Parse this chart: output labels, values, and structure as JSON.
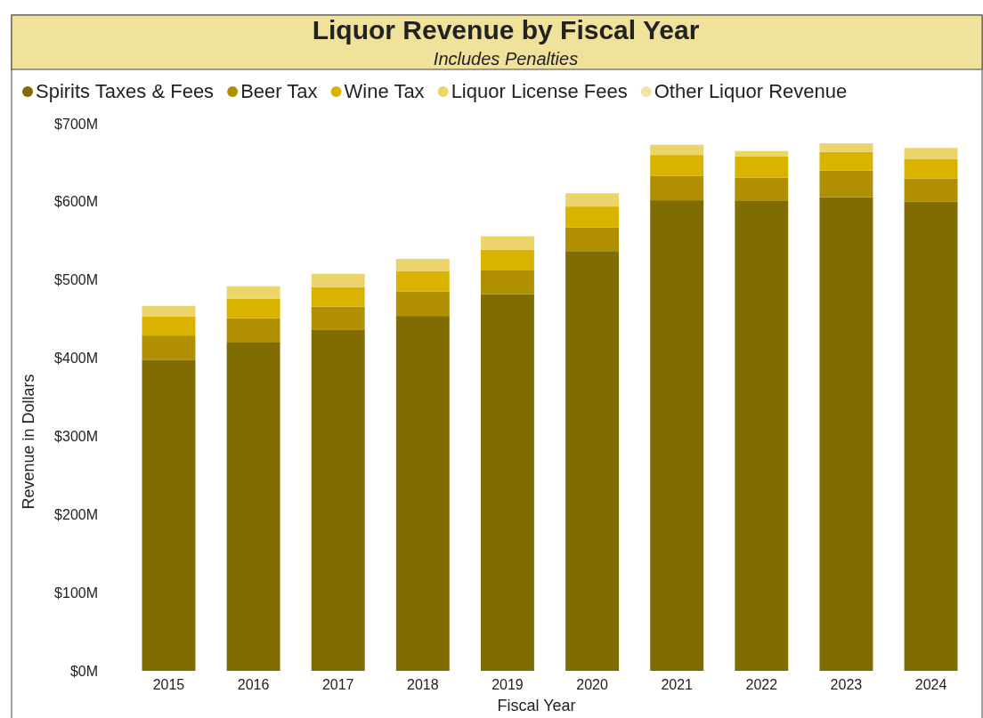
{
  "chart_data": {
    "type": "bar",
    "title": "Liquor Revenue by Fiscal Year",
    "subtitle": "Includes Penalties",
    "xlabel": "Fiscal Year",
    "ylabel": "Revenue in Dollars",
    "categories": [
      "2015",
      "2016",
      "2017",
      "2018",
      "2019",
      "2020",
      "2021",
      "2022",
      "2023",
      "2024"
    ],
    "stacked": true,
    "legend": "top left",
    "grid": false,
    "ylim": [
      0,
      700
    ],
    "yticks": [
      {
        "value": 0,
        "label": "$0M"
      },
      {
        "value": 100,
        "label": "$100M"
      },
      {
        "value": 200,
        "label": "$200M"
      },
      {
        "value": 300,
        "label": "$300M"
      },
      {
        "value": 400,
        "label": "$400M"
      },
      {
        "value": 500,
        "label": "$500M"
      },
      {
        "value": 600,
        "label": "$600M"
      },
      {
        "value": 700,
        "label": "$700M"
      }
    ],
    "series": [
      {
        "name": "Spirits Taxes & Fees",
        "color": "#806c00",
        "values": [
          398,
          420,
          436,
          454,
          482,
          537,
          602,
          601,
          606,
          600
        ]
      },
      {
        "name": "Beer Tax",
        "color": "#b08f00",
        "values": [
          31,
          31,
          30,
          31,
          31,
          30,
          31,
          30,
          34,
          30
        ]
      },
      {
        "name": "Wine Tax",
        "color": "#dab300",
        "values": [
          24,
          25,
          25,
          26,
          26,
          27,
          27,
          27,
          24,
          25
        ]
      },
      {
        "name": "Liquor License Fees",
        "color": "#ebd46a",
        "values": [
          14,
          16,
          17,
          16,
          17,
          17,
          13,
          7,
          11,
          14
        ]
      },
      {
        "name": "Other Liquor Revenue",
        "color": "#efe3a8",
        "values": [
          null,
          null,
          null,
          null,
          null,
          null,
          null,
          null,
          null,
          null
        ]
      }
    ]
  }
}
